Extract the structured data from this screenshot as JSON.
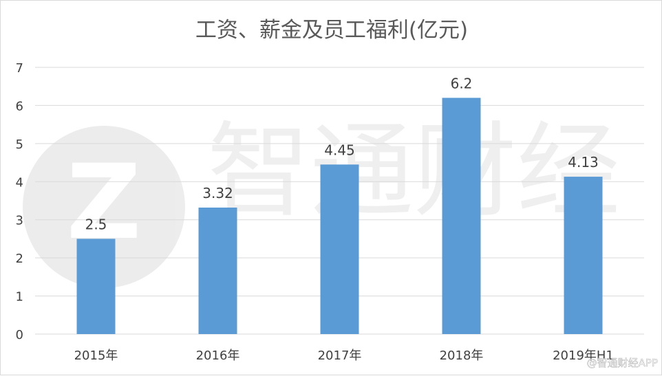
{
  "watermark": {
    "text": "智通财经",
    "corner": "@智通财经APP"
  },
  "chart_data": {
    "type": "bar",
    "title": "工资、薪金及员工福利(亿元)",
    "xlabel": "",
    "ylabel": "",
    "categories": [
      "2015年",
      "2016年",
      "2017年",
      "2018年",
      "2019年H1"
    ],
    "series": [
      {
        "values": [
          2.5,
          3.32,
          4.45,
          6.2,
          4.13
        ],
        "labels": [
          "2.5",
          "3.32",
          "4.45",
          "6.2",
          "4.13"
        ]
      }
    ],
    "ylim": [
      0,
      7
    ],
    "yticks": [
      "0",
      "1",
      "2",
      "3",
      "4",
      "5",
      "6",
      "7"
    ],
    "grid": true,
    "legend": "none",
    "colors": {
      "bar": "#5b9bd5",
      "grid": "#d9d9d9",
      "text": "#404040",
      "title": "#595959"
    }
  }
}
